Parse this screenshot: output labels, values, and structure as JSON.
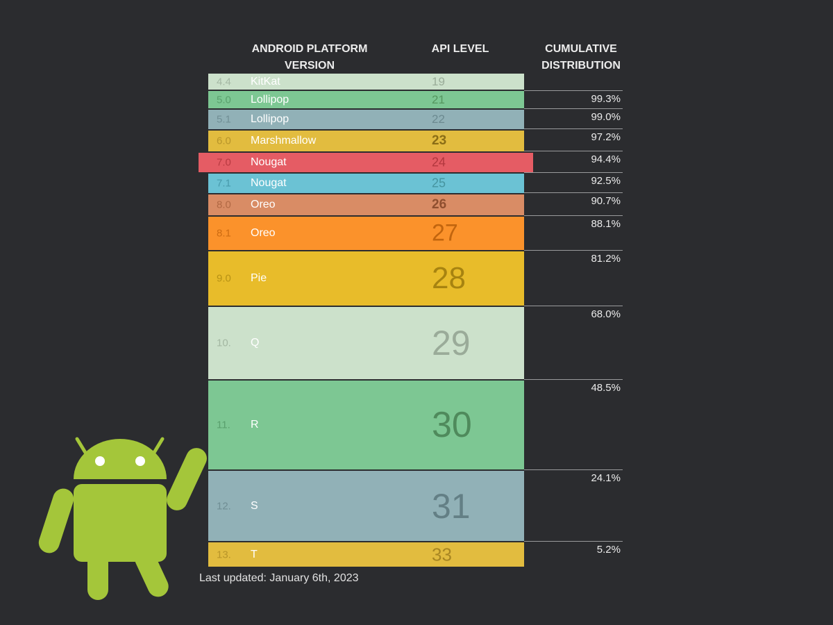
{
  "headers": {
    "version": "ANDROID PLATFORM\nVERSION",
    "api": "API LEVEL",
    "cumulative": "CUMULATIVE\nDISTRIBUTION"
  },
  "chart_data": {
    "type": "table",
    "columns": [
      "ANDROID PLATFORM VERSION",
      "API LEVEL",
      "CUMULATIVE DISTRIBUTION"
    ],
    "rows": [
      {
        "number": "4.4",
        "name": "KitKat",
        "api": "19",
        "cumulative": "",
        "color": "#cce1cb",
        "text_color": "#a5b8a4",
        "name_color": "#ffffff",
        "api_color": "#9aad99"
      },
      {
        "number": "5.0",
        "name": "Lollipop",
        "api": "21",
        "cumulative": "99.3%",
        "color": "#7dc793",
        "text_color": "#5aa06d",
        "name_color": "#ffffff",
        "api_color": "#55965f"
      },
      {
        "number": "5.1",
        "name": "Lollipop",
        "api": "22",
        "cumulative": "99.0%",
        "color": "#91b1b7",
        "text_color": "#718f95",
        "name_color": "#ffffff",
        "api_color": "#6c8a90"
      },
      {
        "number": "6.0",
        "name": "Marshmallow",
        "api": "23",
        "cumulative": "97.2%",
        "color": "#e2bc3f",
        "text_color": "#b8952a",
        "name_color": "#ffffff",
        "api_color": "#8a6d16"
      },
      {
        "number": "7.0",
        "name": "Nougat",
        "api": "24",
        "cumulative": "94.4%",
        "color": "#e55c64",
        "text_color": "#b73a41",
        "name_color": "#ffffff",
        "api_color": "#b2373e",
        "highlight": true
      },
      {
        "number": "7.1",
        "name": "Nougat",
        "api": "25",
        "cumulative": "92.5%",
        "color": "#6bc2d4",
        "text_color": "#489aab",
        "name_color": "#ffffff",
        "api_color": "#46949f"
      },
      {
        "number": "8.0",
        "name": "Oreo",
        "api": "26",
        "cumulative": "90.7%",
        "color": "#d98c65",
        "text_color": "#b16944",
        "name_color": "#ffffff",
        "api_color": "#8f4f2f"
      },
      {
        "number": "8.1",
        "name": "Oreo",
        "api": "27",
        "cumulative": "88.1%",
        "color": "#fb922b",
        "text_color": "#cd6c12",
        "name_color": "#ffffff",
        "api_color": "#c2650e"
      },
      {
        "number": "9.0",
        "name": "Pie",
        "api": "28",
        "cumulative": "81.2%",
        "color": "#e8bc2a",
        "text_color": "#b79215",
        "name_color": "#ffffff",
        "api_color": "#a78310"
      },
      {
        "number": "10.",
        "name": "Q",
        "api": "29",
        "cumulative": "68.0%",
        "color": "#cce1cb",
        "text_color": "#a3b7a2",
        "name_color": "#ffffff",
        "api_color": "#9aab99"
      },
      {
        "number": "11.",
        "name": "R",
        "api": "30",
        "cumulative": "48.5%",
        "color": "#7dc793",
        "text_color": "#5aa06d",
        "name_color": "#ffffff",
        "api_color": "#4f8a5c"
      },
      {
        "number": "12.",
        "name": "S",
        "api": "31",
        "cumulative": "24.1%",
        "color": "#91b1b7",
        "text_color": "#708e94",
        "name_color": "#ffffff",
        "api_color": "#637f85"
      },
      {
        "number": "13.",
        "name": "T",
        "api": "33",
        "cumulative": "5.2%",
        "color": "#e2bc3f",
        "text_color": "#b8952a",
        "name_color": "#ffffff",
        "api_color": "#a88622"
      }
    ]
  },
  "footer": "Last updated: January 6th, 2023",
  "colors": {
    "background": "#2b2c2f",
    "android_green": "#a4c63a",
    "header_text": "#ececec"
  },
  "icons": {
    "mascot": "android-robot-icon"
  }
}
